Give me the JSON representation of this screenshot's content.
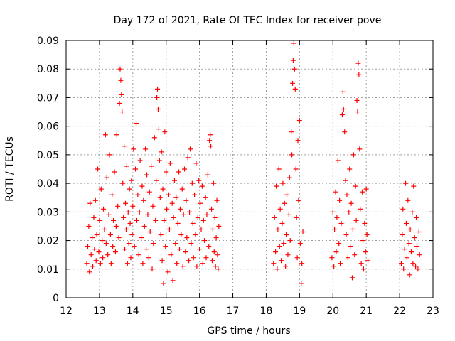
{
  "chart_data": {
    "type": "scatter",
    "title": "Day 172 of 2021, Rate Of TEC Index for receiver pove",
    "xlabel": "GPS time / hours",
    "ylabel": "ROTI / TECUs",
    "xlim": [
      12,
      23
    ],
    "ylim": [
      0,
      0.09
    ],
    "xticks": [
      "12",
      "13",
      "14",
      "15",
      "16",
      "17",
      "18",
      "19",
      "20",
      "21",
      "22",
      "23"
    ],
    "yticks": [
      "0",
      "0.01",
      "0.02",
      "0.03",
      "0.04",
      "0.05",
      "0.06",
      "0.07",
      "0.08",
      "0.09"
    ],
    "grid": true,
    "marker": "+",
    "color": "#ff0000",
    "series": [
      {
        "values": [
          [
            12.62,
            0.012
          ],
          [
            12.65,
            0.018
          ],
          [
            12.68,
            0.025
          ],
          [
            12.7,
            0.009
          ],
          [
            12.72,
            0.033
          ],
          [
            12.75,
            0.015
          ],
          [
            12.78,
            0.021
          ],
          [
            12.8,
            0.011
          ],
          [
            12.83,
            0.028
          ],
          [
            12.85,
            0.017
          ],
          [
            12.88,
            0.034
          ],
          [
            12.9,
            0.013
          ],
          [
            12.92,
            0.022
          ],
          [
            12.95,
            0.045
          ],
          [
            12.98,
            0.016
          ],
          [
            13.0,
            0.027
          ],
          [
            13.03,
            0.012
          ],
          [
            13.05,
            0.038
          ],
          [
            13.08,
            0.02
          ],
          [
            13.1,
            0.014
          ],
          [
            13.12,
            0.031
          ],
          [
            13.15,
            0.024
          ],
          [
            13.18,
            0.057
          ],
          [
            13.2,
            0.019
          ],
          [
            13.22,
            0.042
          ],
          [
            13.25,
            0.015
          ],
          [
            13.28,
            0.029
          ],
          [
            13.3,
            0.05
          ],
          [
            13.33,
            0.022
          ],
          [
            13.35,
            0.012
          ],
          [
            13.38,
            0.036
          ],
          [
            13.4,
            0.018
          ],
          [
            13.42,
            0.027
          ],
          [
            13.45,
            0.044
          ],
          [
            13.48,
            0.016
          ],
          [
            13.5,
            0.025
          ],
          [
            13.52,
            0.057
          ],
          [
            13.55,
            0.032
          ],
          [
            13.58,
            0.021
          ],
          [
            13.6,
            0.068
          ],
          [
            13.62,
            0.08
          ],
          [
            13.64,
            0.076
          ],
          [
            13.66,
            0.071
          ],
          [
            13.68,
            0.065
          ],
          [
            13.7,
            0.04
          ],
          [
            13.72,
            0.028
          ],
          [
            13.74,
            0.053
          ],
          [
            13.76,
            0.017
          ],
          [
            13.78,
            0.033
          ],
          [
            13.8,
            0.024
          ],
          [
            13.82,
            0.046
          ],
          [
            13.84,
            0.012
          ],
          [
            13.86,
            0.03
          ],
          [
            13.88,
            0.019
          ],
          [
            13.9,
            0.038
          ],
          [
            13.92,
            0.026
          ],
          [
            13.94,
            0.014
          ],
          [
            13.96,
            0.041
          ],
          [
            13.98,
            0.022
          ],
          [
            14.0,
            0.032
          ],
          [
            14.02,
            0.052
          ],
          [
            14.05,
            0.018
          ],
          [
            14.08,
            0.045
          ],
          [
            14.1,
            0.061
          ],
          [
            14.12,
            0.027
          ],
          [
            14.15,
            0.036
          ],
          [
            14.18,
            0.015
          ],
          [
            14.2,
            0.03
          ],
          [
            14.22,
            0.048
          ],
          [
            14.25,
            0.021
          ],
          [
            14.28,
            0.039
          ],
          [
            14.3,
            0.012
          ],
          [
            14.32,
            0.034
          ],
          [
            14.35,
            0.025
          ],
          [
            14.38,
            0.052
          ],
          [
            14.4,
            0.017
          ],
          [
            14.42,
            0.043
          ],
          [
            14.45,
            0.029
          ],
          [
            14.48,
            0.014
          ],
          [
            14.5,
            0.037
          ],
          [
            14.52,
            0.023
          ],
          [
            14.55,
            0.046
          ],
          [
            14.58,
            0.01
          ],
          [
            14.6,
            0.032
          ],
          [
            14.62,
            0.019
          ],
          [
            14.65,
            0.056
          ],
          [
            14.68,
            0.027
          ],
          [
            14.7,
            0.041
          ],
          [
            14.72,
            0.07
          ],
          [
            14.74,
            0.073
          ],
          [
            14.76,
            0.066
          ],
          [
            14.78,
            0.059
          ],
          [
            14.8,
            0.048
          ],
          [
            14.82,
            0.035
          ],
          [
            14.84,
            0.022
          ],
          [
            14.86,
            0.051
          ],
          [
            14.88,
            0.013
          ],
          [
            14.9,
            0.038
          ],
          [
            14.92,
            0.005
          ],
          [
            14.94,
            0.027
          ],
          [
            14.96,
            0.058
          ],
          [
            14.98,
            0.018
          ],
          [
            15.0,
            0.044
          ],
          [
            15.02,
            0.031
          ],
          [
            15.05,
            0.009
          ],
          [
            15.08,
            0.036
          ],
          [
            15.1,
            0.024
          ],
          [
            15.12,
            0.047
          ],
          [
            15.15,
            0.015
          ],
          [
            15.18,
            0.033
          ],
          [
            15.2,
            0.006
          ],
          [
            15.22,
            0.028
          ],
          [
            15.25,
            0.041
          ],
          [
            15.28,
            0.019
          ],
          [
            15.3,
            0.035
          ],
          [
            15.32,
            0.012
          ],
          [
            15.35,
            0.026
          ],
          [
            15.38,
            0.044
          ],
          [
            15.4,
            0.017
          ],
          [
            15.42,
            0.031
          ],
          [
            15.45,
            0.022
          ],
          [
            15.48,
            0.038
          ],
          [
            15.5,
            0.011
          ],
          [
            15.52,
            0.029
          ],
          [
            15.55,
            0.045
          ],
          [
            15.58,
            0.016
          ],
          [
            15.6,
            0.034
          ],
          [
            15.62,
            0.021
          ],
          [
            15.65,
            0.049
          ],
          [
            15.68,
            0.013
          ],
          [
            15.7,
            0.03
          ],
          [
            15.72,
            0.052
          ],
          [
            15.75,
            0.019
          ],
          [
            15.78,
            0.04
          ],
          [
            15.8,
            0.026
          ],
          [
            15.82,
            0.014
          ],
          [
            15.85,
            0.036
          ],
          [
            15.88,
            0.022
          ],
          [
            15.9,
            0.047
          ],
          [
            15.92,
            0.011
          ],
          [
            15.95,
            0.028
          ],
          [
            15.98,
            0.041
          ],
          [
            16.0,
            0.017
          ],
          [
            16.02,
            0.033
          ],
          [
            16.05,
            0.024
          ],
          [
            16.08,
            0.039
          ],
          [
            16.1,
            0.012
          ],
          [
            16.12,
            0.027
          ],
          [
            16.15,
            0.02
          ],
          [
            16.18,
            0.035
          ],
          [
            16.2,
            0.014
          ],
          [
            16.22,
            0.029
          ],
          [
            16.25,
            0.043
          ],
          [
            16.28,
            0.018
          ],
          [
            16.3,
            0.055
          ],
          [
            16.32,
            0.057
          ],
          [
            16.34,
            0.053
          ],
          [
            16.36,
            0.031
          ],
          [
            16.38,
            0.013
          ],
          [
            16.4,
            0.024
          ],
          [
            16.42,
            0.04
          ],
          [
            16.44,
            0.016
          ],
          [
            16.46,
            0.028
          ],
          [
            16.48,
            0.011
          ],
          [
            16.5,
            0.021
          ],
          [
            16.52,
            0.034
          ],
          [
            16.54,
            0.015
          ],
          [
            16.56,
            0.01
          ],
          [
            16.58,
            0.025
          ],
          [
            18.22,
            0.012
          ],
          [
            18.25,
            0.028
          ],
          [
            18.28,
            0.016
          ],
          [
            18.3,
            0.039
          ],
          [
            18.33,
            0.01
          ],
          [
            18.35,
            0.024
          ],
          [
            18.38,
            0.045
          ],
          [
            18.4,
            0.018
          ],
          [
            18.42,
            0.031
          ],
          [
            18.45,
            0.013
          ],
          [
            18.48,
            0.026
          ],
          [
            18.5,
            0.04
          ],
          [
            18.52,
            0.019
          ],
          [
            18.55,
            0.033
          ],
          [
            18.58,
            0.011
          ],
          [
            18.6,
            0.022
          ],
          [
            18.62,
            0.036
          ],
          [
            18.65,
            0.015
          ],
          [
            18.68,
            0.029
          ],
          [
            18.7,
            0.042
          ],
          [
            18.72,
            0.02
          ],
          [
            18.75,
            0.058
          ],
          [
            18.77,
            0.05
          ],
          [
            18.79,
            0.075
          ],
          [
            18.81,
            0.083
          ],
          [
            18.83,
            0.089
          ],
          [
            18.85,
            0.08
          ],
          [
            18.87,
            0.073
          ],
          [
            18.89,
            0.045
          ],
          [
            18.91,
            0.028
          ],
          [
            18.93,
            0.014
          ],
          [
            18.95,
            0.055
          ],
          [
            18.97,
            0.034
          ],
          [
            19.0,
            0.062
          ],
          [
            19.02,
            0.019
          ],
          [
            19.05,
            0.005
          ],
          [
            19.07,
            0.012
          ],
          [
            19.1,
            0.023
          ],
          [
            19.97,
            0.014
          ],
          [
            20.0,
            0.03
          ],
          [
            20.03,
            0.011
          ],
          [
            20.05,
            0.024
          ],
          [
            20.08,
            0.037
          ],
          [
            20.1,
            0.016
          ],
          [
            20.12,
            0.028
          ],
          [
            20.15,
            0.048
          ],
          [
            20.18,
            0.019
          ],
          [
            20.2,
            0.034
          ],
          [
            20.22,
            0.012
          ],
          [
            20.25,
            0.026
          ],
          [
            20.28,
            0.064
          ],
          [
            20.3,
            0.072
          ],
          [
            20.32,
            0.066
          ],
          [
            20.35,
            0.058
          ],
          [
            20.38,
            0.041
          ],
          [
            20.4,
            0.022
          ],
          [
            20.42,
            0.036
          ],
          [
            20.45,
            0.014
          ],
          [
            20.48,
            0.03
          ],
          [
            20.5,
            0.045
          ],
          [
            20.52,
            0.018
          ],
          [
            20.55,
            0.033
          ],
          [
            20.58,
            0.007
          ],
          [
            20.6,
            0.024
          ],
          [
            20.62,
            0.05
          ],
          [
            20.65,
            0.015
          ],
          [
            20.68,
            0.039
          ],
          [
            20.7,
            0.027
          ],
          [
            20.72,
            0.069
          ],
          [
            20.74,
            0.065
          ],
          [
            20.76,
            0.082
          ],
          [
            20.78,
            0.078
          ],
          [
            20.8,
            0.052
          ],
          [
            20.82,
            0.031
          ],
          [
            20.85,
            0.012
          ],
          [
            20.88,
            0.037
          ],
          [
            20.9,
            0.02
          ],
          [
            20.92,
            0.01
          ],
          [
            20.95,
            0.026
          ],
          [
            20.98,
            0.016
          ],
          [
            21.0,
            0.038
          ],
          [
            21.02,
            0.022
          ],
          [
            21.05,
            0.013
          ],
          [
            22.05,
            0.012
          ],
          [
            22.08,
            0.022
          ],
          [
            22.1,
            0.031
          ],
          [
            22.12,
            0.01
          ],
          [
            22.15,
            0.017
          ],
          [
            22.18,
            0.04
          ],
          [
            22.2,
            0.026
          ],
          [
            22.22,
            0.014
          ],
          [
            22.25,
            0.034
          ],
          [
            22.28,
            0.019
          ],
          [
            22.3,
            0.008
          ],
          [
            22.32,
            0.024
          ],
          [
            22.35,
            0.016
          ],
          [
            22.38,
            0.03
          ],
          [
            22.4,
            0.012
          ],
          [
            22.42,
            0.039
          ],
          [
            22.45,
            0.021
          ],
          [
            22.48,
            0.011
          ],
          [
            22.5,
            0.028
          ],
          [
            22.52,
            0.018
          ],
          [
            22.55,
            0.01
          ],
          [
            22.58,
            0.023
          ],
          [
            22.6,
            0.015
          ]
        ]
      }
    ]
  }
}
